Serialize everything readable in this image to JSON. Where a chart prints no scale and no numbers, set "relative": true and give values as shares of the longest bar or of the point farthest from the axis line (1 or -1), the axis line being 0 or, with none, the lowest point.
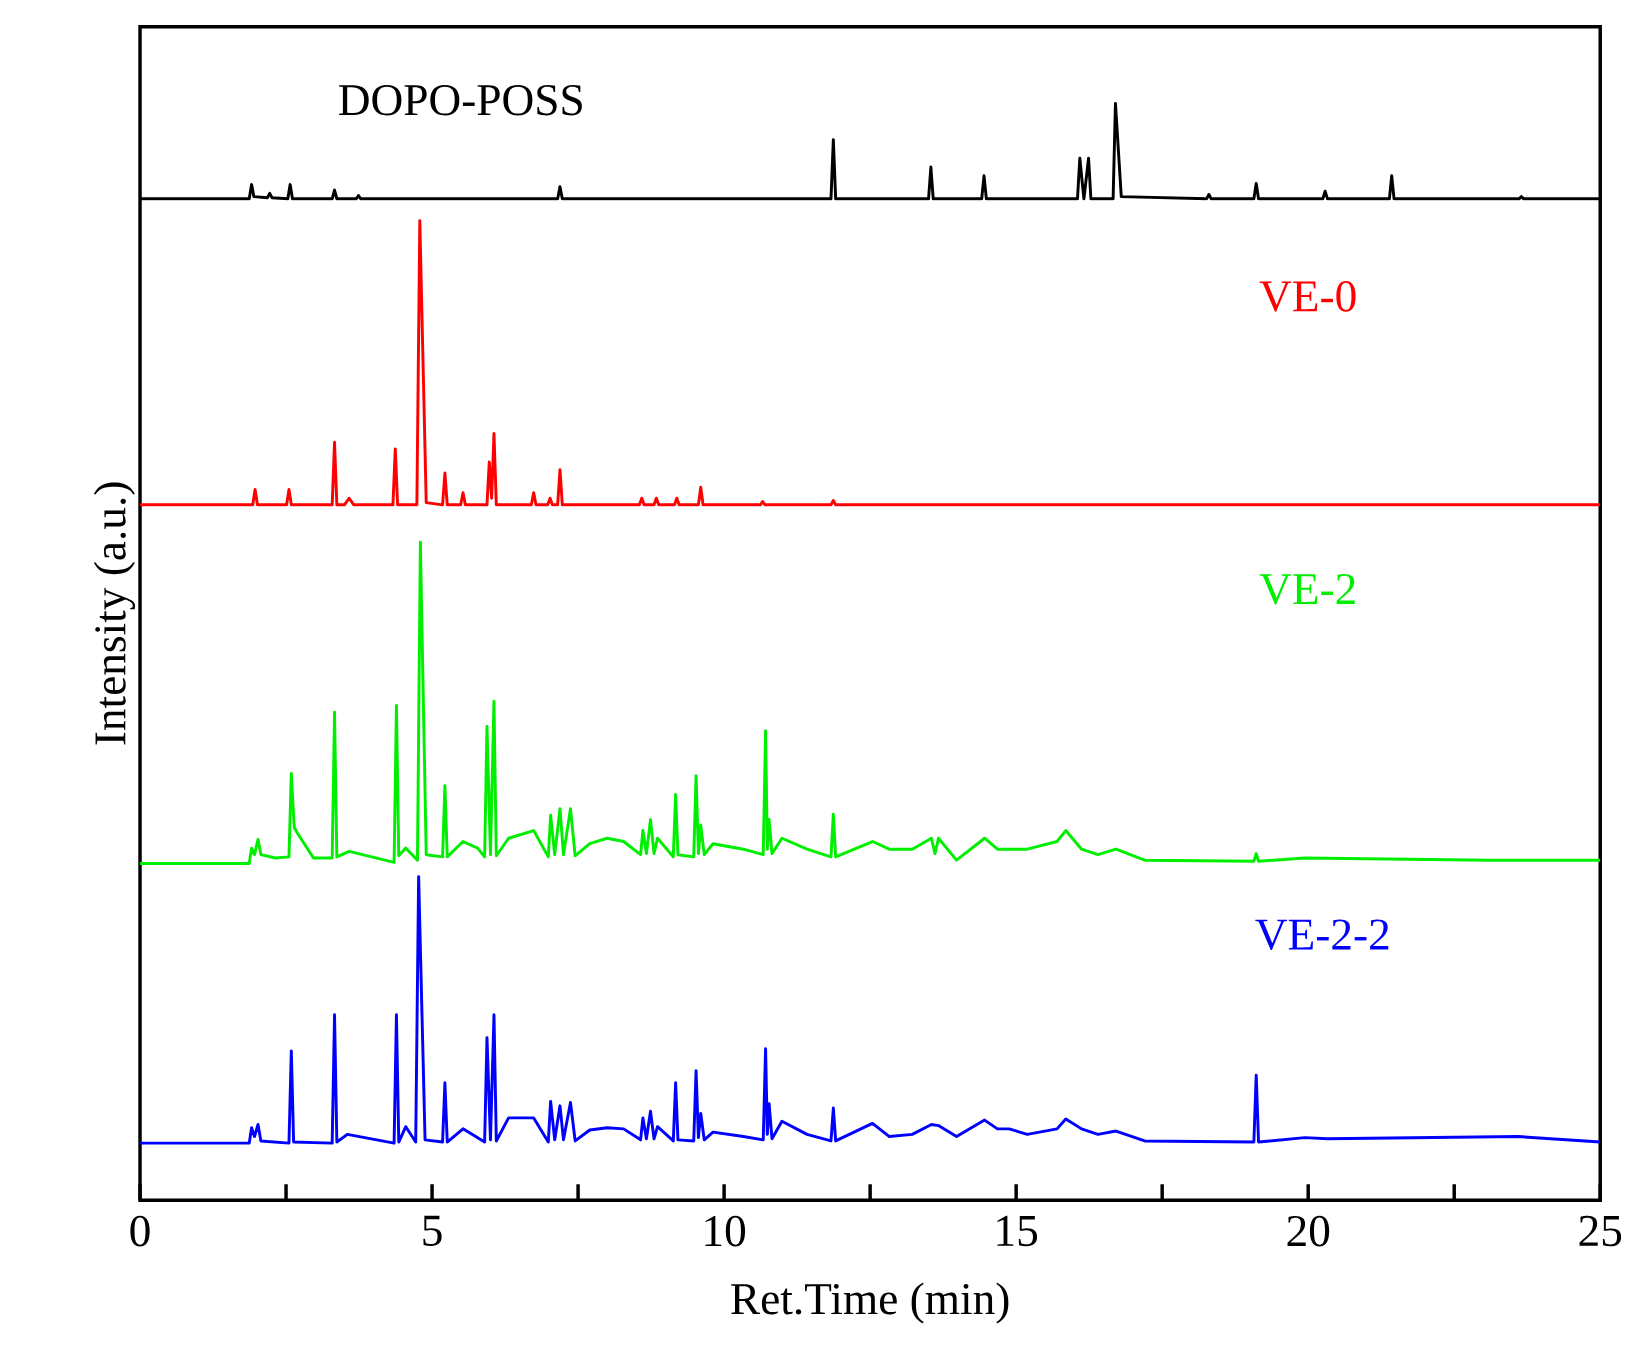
{
  "chart_data": {
    "type": "line",
    "relative": true,
    "xlabel": "Ret.Time (min)",
    "ylabel": "Intensity (a.u.)",
    "xlim": [
      0,
      25
    ],
    "xticks": [
      0,
      {
        "value": 2.5,
        "label": null
      },
      5,
      {
        "value": 7.5,
        "label": null
      },
      10,
      {
        "value": 12.5,
        "label": null
      },
      15,
      {
        "value": 17.5,
        "label": null
      },
      20,
      {
        "value": 22.5,
        "label": null
      },
      25
    ],
    "tick_labels": "x",
    "grid": false,
    "legend": false,
    "marker": "none",
    "line_style": "solid",
    "series": [
      {
        "name": "DOPO-POSS",
        "color": "#000000",
        "x": [
          0,
          1.87,
          1.91,
          1.95,
          2.18,
          2.22,
          2.26,
          2.53,
          2.57,
          2.61,
          3.29,
          3.33,
          3.37,
          3.7,
          3.74,
          3.78,
          7.15,
          7.19,
          7.23,
          11.83,
          11.87,
          11.91,
          13.5,
          13.54,
          13.58,
          14.41,
          14.45,
          14.49,
          16.05,
          16.09,
          16.16,
          16.24,
          16.28,
          16.66,
          16.7,
          16.8,
          18.26,
          18.3,
          18.34,
          19.07,
          19.11,
          19.15,
          20.25,
          20.29,
          20.33,
          21.39,
          21.43,
          21.47,
          23.61,
          23.65,
          23.69,
          25
        ],
        "values": [
          0.913,
          0.913,
          0.926,
          0.915,
          0.914,
          0.918,
          0.914,
          0.913,
          0.926,
          0.913,
          0.913,
          0.921,
          0.913,
          0.913,
          0.916,
          0.913,
          0.913,
          0.924,
          0.913,
          0.913,
          0.967,
          0.913,
          0.913,
          0.942,
          0.913,
          0.913,
          0.934,
          0.913,
          0.913,
          0.95,
          0.913,
          0.95,
          0.913,
          0.913,
          1.0,
          0.915,
          0.913,
          0.917,
          0.913,
          0.913,
          0.927,
          0.913,
          0.913,
          0.92,
          0.913,
          0.913,
          0.934,
          0.913,
          0.913,
          0.915,
          0.913,
          0.913
        ]
      },
      {
        "name": "VE-0",
        "color": "#ff0000",
        "x": [
          0,
          1.93,
          1.97,
          2.01,
          2.51,
          2.55,
          2.59,
          3.29,
          3.33,
          3.37,
          3.5,
          3.58,
          3.66,
          4.33,
          4.37,
          4.41,
          4.74,
          4.79,
          4.9,
          5.18,
          5.22,
          5.26,
          5.49,
          5.53,
          5.57,
          5.94,
          5.98,
          6.02,
          6.06,
          6.1,
          6.7,
          6.74,
          6.78,
          6.98,
          7.02,
          7.06,
          7.15,
          7.19,
          7.23,
          8.55,
          8.59,
          8.63,
          8.8,
          8.84,
          8.88,
          9.15,
          9.19,
          9.23,
          9.56,
          9.6,
          9.64,
          10.62,
          10.66,
          10.7,
          11.83,
          11.87,
          11.91,
          25
        ],
        "values": [
          0.634,
          0.634,
          0.648,
          0.634,
          0.634,
          0.648,
          0.634,
          0.634,
          0.691,
          0.634,
          0.634,
          0.64,
          0.634,
          0.634,
          0.685,
          0.634,
          0.634,
          0.893,
          0.636,
          0.634,
          0.663,
          0.634,
          0.634,
          0.645,
          0.634,
          0.634,
          0.673,
          0.64,
          0.699,
          0.634,
          0.634,
          0.645,
          0.634,
          0.634,
          0.64,
          0.634,
          0.634,
          0.666,
          0.634,
          0.634,
          0.64,
          0.634,
          0.634,
          0.64,
          0.634,
          0.634,
          0.64,
          0.634,
          0.634,
          0.65,
          0.634,
          0.634,
          0.637,
          0.634,
          0.634,
          0.638,
          0.634,
          0.634
        ]
      },
      {
        "name": "VE-2",
        "color": "#00ee00",
        "x": [
          0,
          1.87,
          1.91,
          1.96,
          2.02,
          2.07,
          2.32,
          2.55,
          2.59,
          2.64,
          2.69,
          2.97,
          3.29,
          3.33,
          3.37,
          3.58,
          4.35,
          4.39,
          4.43,
          4.55,
          4.75,
          4.8,
          4.9,
          5.18,
          5.22,
          5.26,
          5.53,
          5.78,
          5.9,
          5.94,
          6.0,
          6.06,
          6.1,
          6.31,
          6.74,
          6.99,
          7.03,
          7.1,
          7.19,
          7.25,
          7.37,
          7.45,
          7.7,
          8.0,
          8.28,
          8.57,
          8.61,
          8.67,
          8.74,
          8.8,
          8.86,
          9.13,
          9.17,
          9.21,
          9.48,
          9.52,
          9.56,
          9.6,
          9.66,
          9.81,
          10.33,
          10.67,
          10.71,
          10.74,
          10.77,
          10.82,
          10.99,
          11.42,
          11.83,
          11.87,
          11.91,
          12.54,
          12.83,
          13.22,
          13.55,
          13.61,
          13.67,
          13.98,
          14.46,
          14.68,
          14.88,
          15.19,
          15.7,
          15.85,
          16.12,
          16.4,
          16.71,
          17.2,
          19.07,
          19.11,
          19.15,
          19.94,
          23.1,
          25
        ],
        "values": [
          0.307,
          0.307,
          0.321,
          0.315,
          0.329,
          0.315,
          0.312,
          0.313,
          0.389,
          0.34,
          0.335,
          0.312,
          0.312,
          0.445,
          0.313,
          0.318,
          0.308,
          0.451,
          0.314,
          0.321,
          0.31,
          0.6,
          0.315,
          0.313,
          0.378,
          0.313,
          0.327,
          0.321,
          0.313,
          0.432,
          0.315,
          0.455,
          0.314,
          0.33,
          0.337,
          0.313,
          0.351,
          0.315,
          0.357,
          0.315,
          0.357,
          0.314,
          0.325,
          0.33,
          0.327,
          0.315,
          0.337,
          0.316,
          0.347,
          0.316,
          0.33,
          0.313,
          0.37,
          0.315,
          0.313,
          0.387,
          0.316,
          0.342,
          0.315,
          0.325,
          0.32,
          0.315,
          0.428,
          0.32,
          0.347,
          0.316,
          0.33,
          0.32,
          0.313,
          0.352,
          0.313,
          0.327,
          0.32,
          0.32,
          0.33,
          0.316,
          0.33,
          0.31,
          0.33,
          0.32,
          0.32,
          0.32,
          0.327,
          0.337,
          0.32,
          0.315,
          0.32,
          0.31,
          0.309,
          0.316,
          0.309,
          0.312,
          0.31,
          0.31
        ]
      },
      {
        "name": "VE-2-2",
        "color": "#0000ff",
        "x": [
          0,
          1.87,
          1.91,
          1.96,
          2.02,
          2.07,
          2.55,
          2.59,
          2.63,
          3.29,
          3.33,
          3.37,
          3.55,
          4.35,
          4.39,
          4.43,
          4.55,
          4.72,
          4.77,
          4.88,
          5.18,
          5.22,
          5.26,
          5.53,
          5.9,
          5.94,
          6.0,
          6.06,
          6.1,
          6.31,
          6.74,
          6.99,
          7.03,
          7.1,
          7.19,
          7.25,
          7.37,
          7.45,
          7.7,
          8.0,
          8.28,
          8.57,
          8.61,
          8.67,
          8.74,
          8.8,
          8.86,
          9.13,
          9.17,
          9.21,
          9.48,
          9.52,
          9.56,
          9.6,
          9.66,
          9.81,
          10.33,
          10.67,
          10.71,
          10.74,
          10.77,
          10.82,
          10.99,
          11.42,
          11.83,
          11.87,
          11.91,
          12.54,
          12.83,
          13.22,
          13.55,
          13.67,
          13.98,
          14.46,
          14.68,
          14.88,
          15.19,
          15.7,
          15.85,
          16.12,
          16.4,
          16.71,
          17.2,
          19.07,
          19.11,
          19.15,
          19.94,
          20.33,
          23.6,
          25
        ],
        "values": [
          0.052,
          0.052,
          0.066,
          0.058,
          0.069,
          0.054,
          0.052,
          0.136,
          0.053,
          0.052,
          0.169,
          0.053,
          0.06,
          0.052,
          0.169,
          0.053,
          0.067,
          0.053,
          0.295,
          0.055,
          0.053,
          0.107,
          0.053,
          0.065,
          0.053,
          0.148,
          0.055,
          0.169,
          0.054,
          0.075,
          0.075,
          0.053,
          0.09,
          0.055,
          0.086,
          0.055,
          0.089,
          0.054,
          0.064,
          0.066,
          0.065,
          0.055,
          0.075,
          0.056,
          0.081,
          0.056,
          0.067,
          0.054,
          0.107,
          0.055,
          0.054,
          0.118,
          0.057,
          0.079,
          0.055,
          0.062,
          0.058,
          0.055,
          0.138,
          0.06,
          0.088,
          0.056,
          0.072,
          0.06,
          0.054,
          0.084,
          0.054,
          0.07,
          0.058,
          0.06,
          0.069,
          0.068,
          0.058,
          0.073,
          0.065,
          0.065,
          0.06,
          0.065,
          0.074,
          0.065,
          0.06,
          0.063,
          0.054,
          0.053,
          0.114,
          0.053,
          0.057,
          0.056,
          0.058,
          0.053
        ]
      }
    ]
  }
}
